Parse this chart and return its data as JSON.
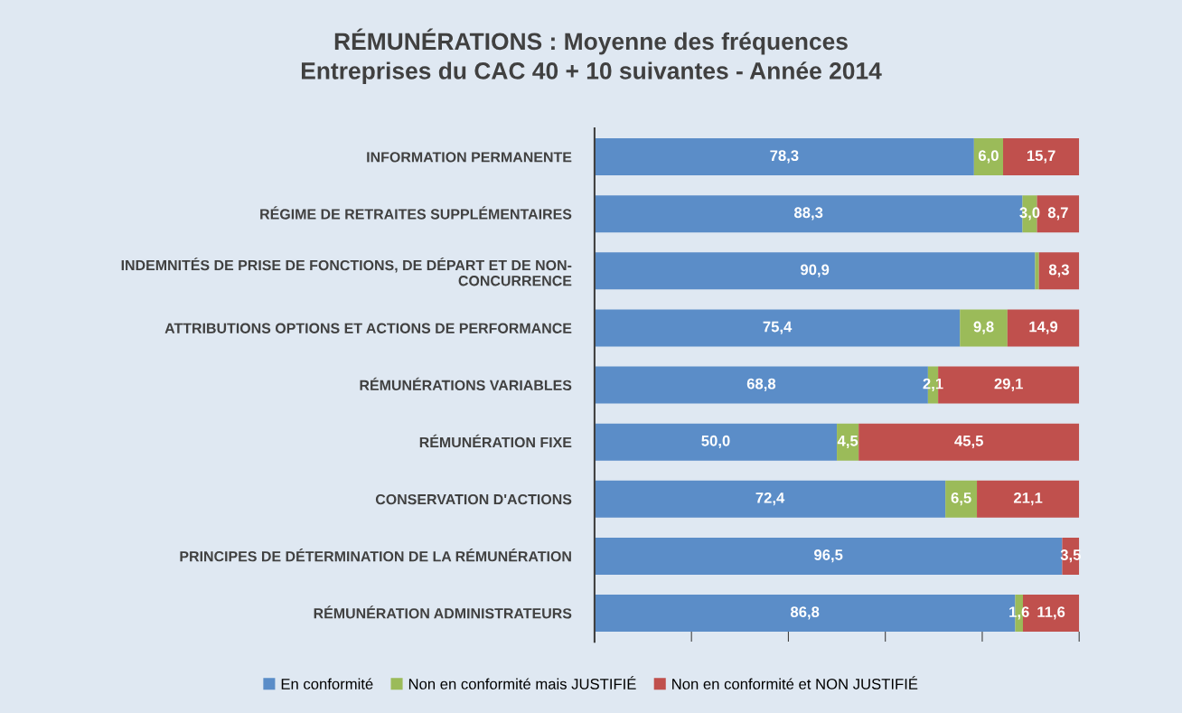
{
  "chart_data": {
    "type": "bar",
    "orientation": "horizontal",
    "stacked": true,
    "title": "RÉMUNÉRATIONS : Moyenne des fréquences\nEntreprises du CAC 40 + 10 suivantes - Année 2014",
    "categories": [
      "INFORMATION PERMANENTE",
      "RÉGIME DE RETRAITES SUPPLÉMENTAIRES",
      "INDEMNITÉS DE PRISE DE FONCTIONS, DE DÉPART ET DE NON-\nCONCURRENCE",
      "ATTRIBUTIONS OPTIONS ET ACTIONS DE PERFORMANCE",
      "RÉMUNÉRATIONS VARIABLES",
      "RÉMUNÉRATION FIXE",
      "CONSERVATION D'ACTIONS",
      "PRINCIPES DE DÉTERMINATION DE LA RÉMUNÉRATION",
      "RÉMUNÉRATION ADMINISTRATEURS"
    ],
    "series": [
      {
        "name": "En conformité",
        "color": "#5b8dc8",
        "values": [
          78.3,
          88.3,
          90.9,
          75.4,
          68.8,
          50.0,
          72.4,
          96.5,
          86.8
        ],
        "value_labels": [
          "78,3",
          "88,3",
          "90,9",
          "75,4",
          "68,8",
          "50,0",
          "72,4",
          "96,5",
          "86,8"
        ]
      },
      {
        "name": "Non en conformité mais JUSTIFIÉ",
        "color": "#9bbb59",
        "values": [
          6.0,
          3.0,
          0.8,
          9.8,
          2.1,
          4.5,
          6.5,
          0.0,
          1.6
        ],
        "value_labels": [
          "6,0",
          "3,0",
          null,
          "9,8",
          "2,1",
          "4,5",
          "6,5",
          null,
          "1,6"
        ]
      },
      {
        "name": "Non en conformité et NON JUSTIFIÉ",
        "color": "#c0504d",
        "values": [
          15.7,
          8.7,
          8.3,
          14.9,
          29.1,
          45.5,
          21.1,
          3.5,
          11.6
        ],
        "value_labels": [
          "15,7",
          "8,7",
          "8,3",
          "14,9",
          "29,1",
          "45,5",
          "21,1",
          "3,5",
          "11,6"
        ]
      }
    ],
    "xlim": [
      0,
      100
    ],
    "xticks": [
      {
        "value": 0,
        "label": null
      },
      {
        "value": 20,
        "label": null
      },
      {
        "value": 40,
        "label": null
      },
      {
        "value": 60,
        "label": null
      },
      {
        "value": 80,
        "label": null
      },
      {
        "value": 100,
        "label": null
      }
    ],
    "legend": "bottom",
    "grid": false
  }
}
